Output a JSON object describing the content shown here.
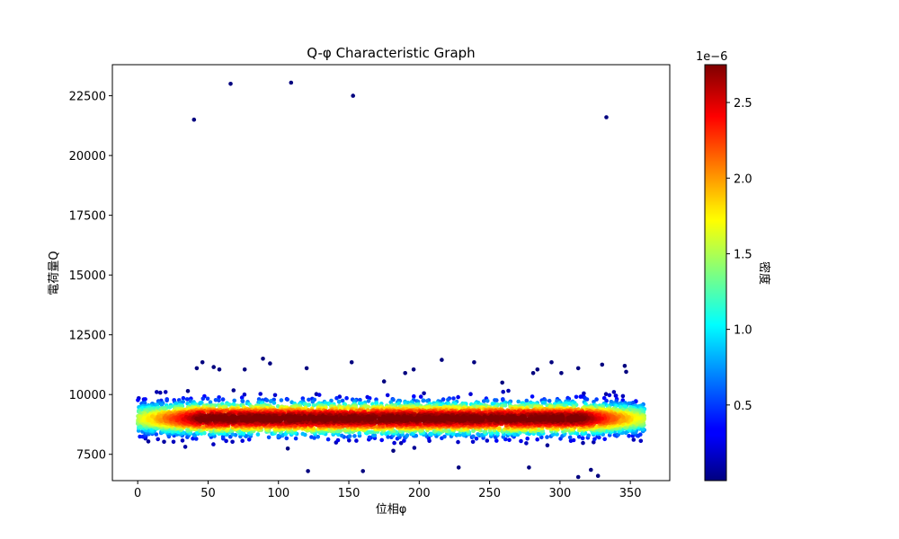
{
  "chart_data": {
    "type": "scatter",
    "title": "Q-φ Characteristic Graph",
    "xlabel": "位相φ",
    "ylabel": "電荷量Q",
    "xlim": [
      -18,
      378
    ],
    "ylim": [
      6400,
      23800
    ],
    "xticks": [
      0,
      50,
      100,
      150,
      200,
      250,
      300,
      350
    ],
    "yticks": [
      7500,
      10000,
      12500,
      15000,
      17500,
      20000,
      22500
    ],
    "grid": false,
    "colormap": "jet",
    "colorbar": {
      "label": "密度",
      "scale_label": "1e−6",
      "range": [
        0.0,
        2.75
      ],
      "ticks": [
        0.5,
        1.0,
        1.5,
        2.0,
        2.5
      ],
      "tick_labels": [
        "0.5",
        "1.0",
        "1.5",
        "2.0",
        "2.5"
      ]
    },
    "bulk_distribution": {
      "x_range": [
        0,
        360
      ],
      "y_center": 9000,
      "y_core_std": 350,
      "y_typical_range": [
        7500,
        10200
      ]
    },
    "outliers": [
      {
        "x": 40,
        "y": 21500
      },
      {
        "x": 66,
        "y": 23000
      },
      {
        "x": 109,
        "y": 23050
      },
      {
        "x": 153,
        "y": 22500
      },
      {
        "x": 333,
        "y": 21600
      },
      {
        "x": 42,
        "y": 11100
      },
      {
        "x": 46,
        "y": 11350
      },
      {
        "x": 54,
        "y": 11150
      },
      {
        "x": 58,
        "y": 11050
      },
      {
        "x": 89,
        "y": 11500
      },
      {
        "x": 94,
        "y": 11300
      },
      {
        "x": 120,
        "y": 11100
      },
      {
        "x": 152,
        "y": 11350
      },
      {
        "x": 190,
        "y": 10900
      },
      {
        "x": 196,
        "y": 11050
      },
      {
        "x": 216,
        "y": 11450
      },
      {
        "x": 239,
        "y": 11350
      },
      {
        "x": 281,
        "y": 10900
      },
      {
        "x": 284,
        "y": 11050
      },
      {
        "x": 294,
        "y": 11350
      },
      {
        "x": 301,
        "y": 10900
      },
      {
        "x": 313,
        "y": 11100
      },
      {
        "x": 330,
        "y": 11250
      },
      {
        "x": 346,
        "y": 11200
      },
      {
        "x": 347,
        "y": 10950
      },
      {
        "x": 76,
        "y": 11050
      },
      {
        "x": 175,
        "y": 10550
      },
      {
        "x": 259,
        "y": 10500
      },
      {
        "x": 121,
        "y": 6800
      },
      {
        "x": 160,
        "y": 6800
      },
      {
        "x": 228,
        "y": 6950
      },
      {
        "x": 278,
        "y": 6950
      },
      {
        "x": 313,
        "y": 6550
      },
      {
        "x": 327,
        "y": 6600
      },
      {
        "x": 322,
        "y": 6850
      }
    ]
  }
}
